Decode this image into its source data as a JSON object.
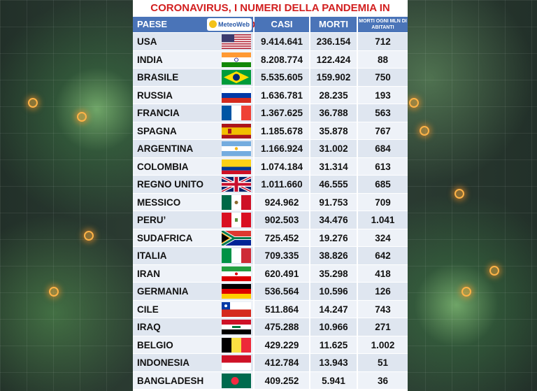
{
  "title": "CORONAVIRUS, I NUMERI DELLA PANDEMIA IN DIRETTA",
  "logo": "MeteoWeb",
  "headers": {
    "country": "PAESE",
    "cases": "CASI TOTALI",
    "deaths": "MORTI",
    "rate": "MORTI OGNI MLN DI ABITANTI"
  },
  "rows": [
    {
      "name": "USA",
      "cases": "9.414.641",
      "deaths": "236.154",
      "rate": "712",
      "flag": "usa-flag-icon"
    },
    {
      "name": "INDIA",
      "cases": "8.208.774",
      "deaths": "122.424",
      "rate": "88",
      "flag": "india-flag-icon"
    },
    {
      "name": "BRASILE",
      "cases": "5.535.605",
      "deaths": "159.902",
      "rate": "750",
      "flag": "brazil-flag-icon"
    },
    {
      "name": "RUSSIA",
      "cases": "1.636.781",
      "deaths": "28.235",
      "rate": "193",
      "flag": "russia-flag-icon"
    },
    {
      "name": "FRANCIA",
      "cases": "1.367.625",
      "deaths": "36.788",
      "rate": "563",
      "flag": "france-flag-icon"
    },
    {
      "name": "SPAGNA",
      "cases": "1.185.678",
      "deaths": "35.878",
      "rate": "767",
      "flag": "spain-flag-icon"
    },
    {
      "name": "ARGENTINA",
      "cases": "1.166.924",
      "deaths": "31.002",
      "rate": "684",
      "flag": "argentina-flag-icon"
    },
    {
      "name": "COLOMBIA",
      "cases": "1.074.184",
      "deaths": "31.314",
      "rate": "613",
      "flag": "colombia-flag-icon"
    },
    {
      "name": "REGNO UNITO",
      "cases": "1.011.660",
      "deaths": "46.555",
      "rate": "685",
      "flag": "uk-flag-icon"
    },
    {
      "name": "MESSICO",
      "cases": "924.962",
      "deaths": "91.753",
      "rate": "709",
      "flag": "mexico-flag-icon"
    },
    {
      "name": "PERU’",
      "cases": "902.503",
      "deaths": "34.476",
      "rate": "1.041",
      "flag": "peru-flag-icon"
    },
    {
      "name": "SUDAFRICA",
      "cases": "725.452",
      "deaths": "19.276",
      "rate": "324",
      "flag": "south-africa-flag-icon"
    },
    {
      "name": "ITALIA",
      "cases": "709.335",
      "deaths": "38.826",
      "rate": "642",
      "flag": "italy-flag-icon"
    },
    {
      "name": "IRAN",
      "cases": "620.491",
      "deaths": "35.298",
      "rate": "418",
      "flag": "iran-flag-icon"
    },
    {
      "name": "GERMANIA",
      "cases": "536.564",
      "deaths": "10.596",
      "rate": "126",
      "flag": "germany-flag-icon"
    },
    {
      "name": "CILE",
      "cases": "511.864",
      "deaths": "14.247",
      "rate": "743",
      "flag": "chile-flag-icon"
    },
    {
      "name": "IRAQ",
      "cases": "475.288",
      "deaths": "10.966",
      "rate": "271",
      "flag": "iraq-flag-icon"
    },
    {
      "name": "BELGIO",
      "cases": "429.229",
      "deaths": "11.625",
      "rate": "1.002",
      "flag": "belgium-flag-icon"
    },
    {
      "name": "INDONESIA",
      "cases": "412.784",
      "deaths": "13.943",
      "rate": "51",
      "flag": "indonesia-flag-icon"
    },
    {
      "name": "BANGLADESH",
      "cases": "409.252",
      "deaths": "5.941",
      "rate": "36",
      "flag": "bangladesh-flag-icon"
    }
  ],
  "colors": {
    "title": "#d21f1f",
    "header": "#4a74b8",
    "row_even": "#dfe6f0",
    "row_odd": "#eef2f8"
  }
}
